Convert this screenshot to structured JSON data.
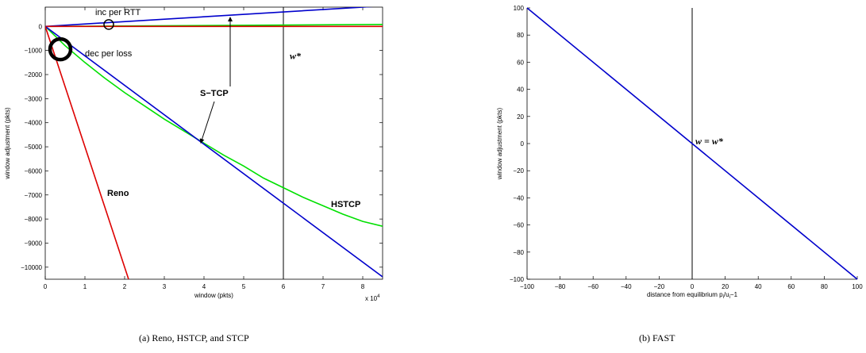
{
  "chart_data": [
    {
      "type": "line",
      "title": "",
      "xlabel": "window (pkts)",
      "ylabel": "window adjustment (pkts)",
      "x_multiplier_label": "x 10",
      "x_multiplier_exp": "4",
      "xlim": [
        0,
        8.5
      ],
      "ylim": [
        -10500,
        800
      ],
      "xticks": [
        0,
        1,
        2,
        3,
        4,
        5,
        6,
        7,
        8
      ],
      "yticks": [
        0,
        -1000,
        -2000,
        -3000,
        -4000,
        -5000,
        -6000,
        -7000,
        -8000,
        -9000,
        -10000
      ],
      "grid": false,
      "series": [
        {
          "name": "Reno",
          "color": "#dd0000",
          "kind": "decrease",
          "x": [
            0,
            2.1
          ],
          "y": [
            0,
            -10500
          ]
        },
        {
          "name": "HSTCP",
          "color": "#00e000",
          "kind": "decrease",
          "x": [
            0,
            0.5,
            1,
            1.5,
            2,
            2.5,
            3,
            3.5,
            4,
            4.5,
            5,
            5.5,
            6,
            6.5,
            7,
            7.5,
            8,
            8.5
          ],
          "y": [
            0,
            -800,
            -1500,
            -2150,
            -2750,
            -3300,
            -3850,
            -4350,
            -4850,
            -5350,
            -5800,
            -6300,
            -6700,
            -7100,
            -7450,
            -7800,
            -8100,
            -8300
          ]
        },
        {
          "name": "S-TCP",
          "color": "#0000cc",
          "kind": "decrease",
          "x": [
            0,
            8.5
          ],
          "y": [
            0,
            -10400
          ]
        },
        {
          "name": "S-TCP",
          "color": "#0000cc",
          "kind": "increase",
          "x": [
            0,
            8.5
          ],
          "y": [
            0,
            850
          ]
        },
        {
          "name": "HSTCP",
          "color": "#00e000",
          "kind": "increase",
          "x": [
            0,
            8.5
          ],
          "y": [
            0,
            80
          ]
        },
        {
          "name": "Reno",
          "color": "#dd0000",
          "kind": "increase",
          "x": [
            0,
            8.5
          ],
          "y": [
            0,
            0
          ]
        }
      ],
      "vline": {
        "x": 6,
        "label": "w*"
      },
      "annotations": {
        "inc_per_rtt": "inc per RTT",
        "dec_per_loss": "dec per loss",
        "stcp": "S−TCP",
        "reno": "Reno",
        "hstcp": "HSTCP"
      },
      "caption": "(a) Reno, HSTCP, and STCP"
    },
    {
      "type": "line",
      "title": "",
      "xlabel": "distance from equilibrium p",
      "xlabel_sub1": "i",
      "xlabel_mid": "/u",
      "xlabel_sub2": "i",
      "xlabel_end": "−1",
      "ylabel": "window adjustment (pkts)",
      "xlim": [
        -100,
        100
      ],
      "ylim": [
        -100,
        100
      ],
      "xticks": [
        -100,
        -80,
        -60,
        -40,
        -20,
        0,
        20,
        40,
        60,
        80,
        100
      ],
      "yticks": [
        100,
        80,
        60,
        40,
        20,
        0,
        -20,
        -40,
        -60,
        -80,
        -100
      ],
      "grid": false,
      "series": [
        {
          "name": "FAST",
          "color": "#0000cc",
          "x": [
            -100,
            100
          ],
          "y": [
            100,
            -100
          ]
        }
      ],
      "vline": {
        "x": 0
      },
      "annotations": {
        "equilibrium": "w = w*"
      },
      "caption": "(b) FAST"
    }
  ]
}
